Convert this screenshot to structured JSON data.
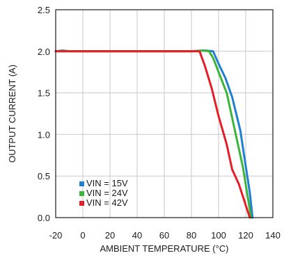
{
  "chart_data": {
    "type": "line",
    "xlabel": "AMBIENT TEMPERATURE (°C)",
    "ylabel": "OUTPUT CURRENT (A)",
    "xlim": [
      -20,
      140
    ],
    "ylim": [
      0,
      2.5
    ],
    "xticks": [
      -20,
      0,
      20,
      40,
      60,
      80,
      100,
      120,
      140
    ],
    "yticks": [
      0.0,
      0.5,
      1.0,
      1.5,
      2.0,
      2.5
    ],
    "xtick_labels": [
      "-20",
      "0",
      "20",
      "40",
      "60",
      "80",
      "100",
      "120",
      "140"
    ],
    "ytick_labels": [
      "0.0",
      "0.5",
      "1.0",
      "1.5",
      "2.0",
      "2.5"
    ],
    "grid": true,
    "legend_position": "bottom-left",
    "series": [
      {
        "name": "VIN = 15V",
        "color": "#1f7fd0",
        "x": [
          -20,
          -15,
          -10,
          0,
          20,
          40,
          60,
          80,
          90,
          96,
          100,
          105,
          110,
          116,
          120,
          123,
          125
        ],
        "y": [
          2.0,
          2.01,
          2.0,
          2.0,
          2.0,
          2.0,
          2.0,
          2.0,
          2.01,
          2.0,
          1.85,
          1.68,
          1.45,
          1.05,
          0.62,
          0.3,
          0.0
        ]
      },
      {
        "name": "VIN = 24V",
        "color": "#3cb43c",
        "x": [
          -20,
          0,
          20,
          40,
          60,
          80,
          88,
          93,
          96,
          100,
          106,
          112,
          118,
          122,
          124
        ],
        "y": [
          2.0,
          2.0,
          2.0,
          2.0,
          2.0,
          2.0,
          2.01,
          2.0,
          1.92,
          1.75,
          1.5,
          1.05,
          0.6,
          0.2,
          0.0
        ]
      },
      {
        "name": "VIN = 42V",
        "color": "#e41e26",
        "x": [
          -20,
          0,
          20,
          40,
          60,
          80,
          86,
          90,
          95,
          100,
          106,
          110,
          115,
          120,
          123
        ],
        "y": [
          2.0,
          2.0,
          2.0,
          2.0,
          2.0,
          2.0,
          2.0,
          1.82,
          1.55,
          1.22,
          0.88,
          0.58,
          0.4,
          0.15,
          0.0
        ]
      }
    ]
  }
}
